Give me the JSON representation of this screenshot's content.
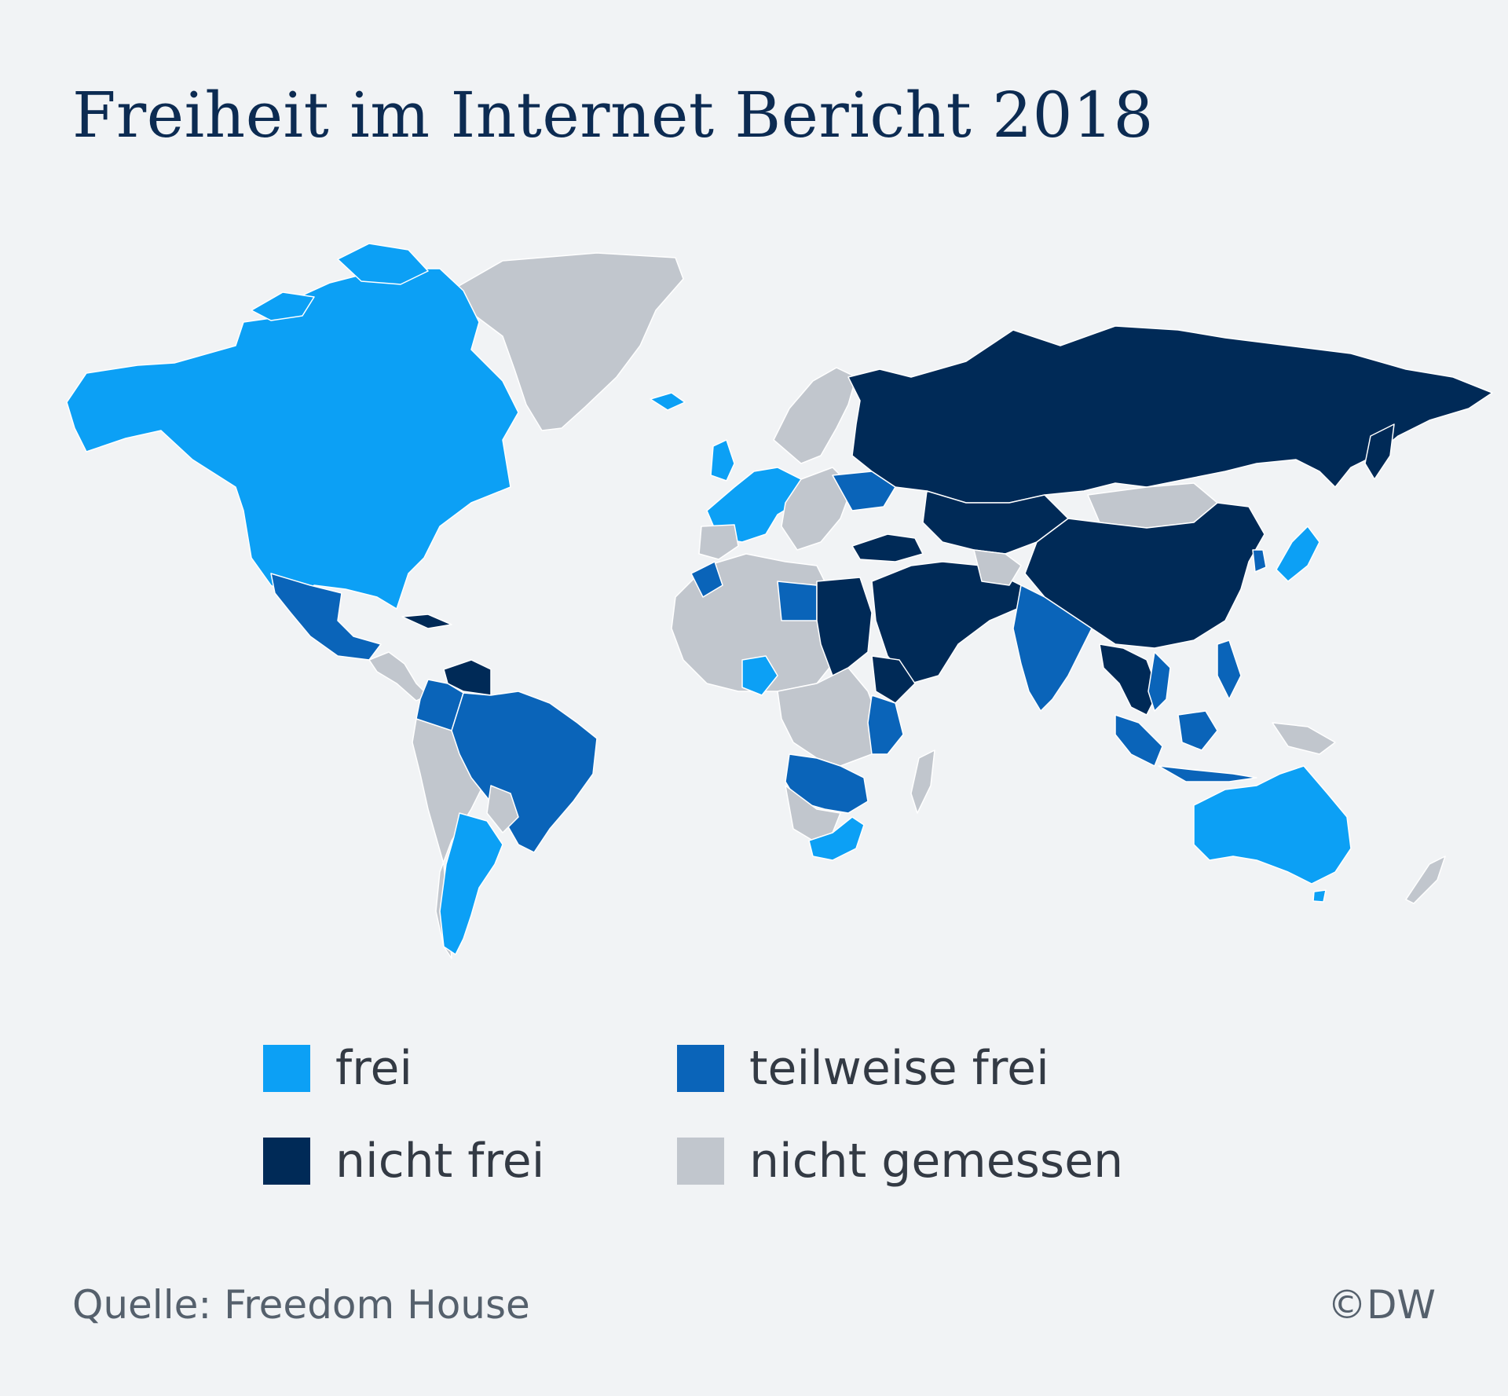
{
  "title": "Freiheit im Internet Bericht 2018",
  "colors": {
    "background": "#f1f3f5",
    "frei": "#0ca0f5",
    "teilweise_frei": "#0a64b9",
    "nicht_frei": "#002a57",
    "nicht_gemessen": "#c1c6cd"
  },
  "legend": {
    "frei": "frei",
    "teilweise_frei": "teilweise frei",
    "nicht_frei": "nicht frei",
    "nicht_gemessen": "nicht gemessen"
  },
  "source": "Quelle: Freedom House",
  "credit": "©DW"
}
